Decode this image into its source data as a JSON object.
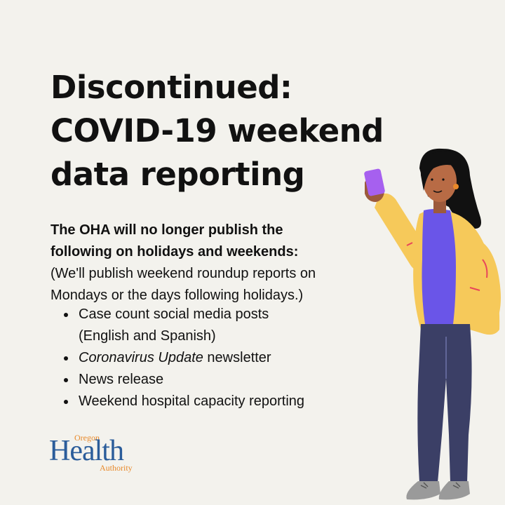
{
  "headline": {
    "line1": "Discontinued:",
    "line2": "COVID-19 weekend",
    "line3": "data reporting"
  },
  "intro": {
    "bold_line1": "The OHA will no longer publish the",
    "bold_line2": "following on holidays and weekends:",
    "note_line1": "(We'll publish weekend roundup reports on",
    "note_line2": "Mondays or the days following holidays.)"
  },
  "bullets": {
    "item1_line1": "Case count social media posts",
    "item1_line2": "(English and Spanish)",
    "item2_italic": "Coronavirus Update",
    "item2_rest": " newsletter",
    "item3": "News release",
    "item4": "Weekend hospital capacity reporting"
  },
  "logo": {
    "top": "Oregon",
    "main": "Health",
    "bottom": "Authority"
  },
  "colors": {
    "background": "#f3f2ed",
    "logo_blue": "#2a5c9a",
    "logo_orange": "#e8892a",
    "jacket": "#f6c95a",
    "shirt": "#6a55e8",
    "pants": "#3b3f66"
  },
  "icons": {
    "illustration": "woman-holding-phone-illustration"
  }
}
